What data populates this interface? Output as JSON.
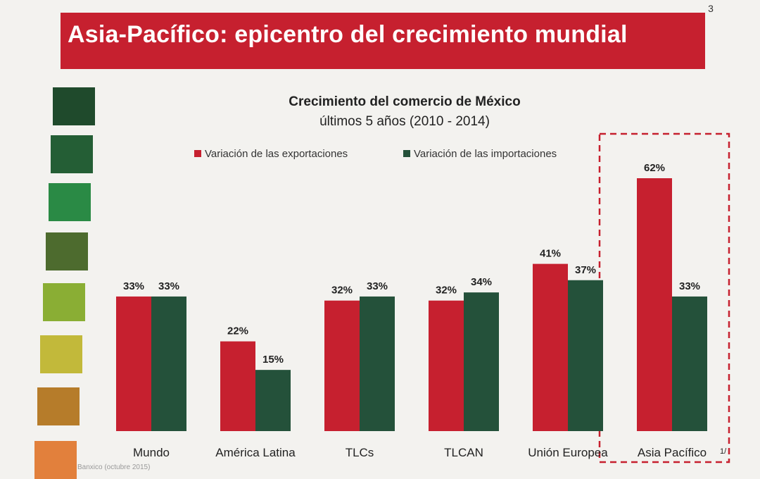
{
  "page_number": "3",
  "banner_title": "Asia-Pacífico: epicentro del crecimiento mundial",
  "palette_colors": [
    "#1f4a2c",
    "#245e35",
    "#2a8a45",
    "#4d6b2e",
    "#8aae34",
    "#c2b93a",
    "#b67c2a",
    "#e2803c"
  ],
  "footnote": "Banxico (octubre 2015)",
  "chart_data": {
    "type": "bar",
    "title": "Crecimiento del comercio de México",
    "subtitle": "últimos 5 años (2010 - 2014)",
    "categories": [
      "Mundo",
      "América Latina",
      "TLCs",
      "TLCAN",
      "Unión Europea",
      "Asia Pacífico"
    ],
    "category_notes": [
      "",
      "",
      "",
      "",
      "",
      "1/"
    ],
    "series": [
      {
        "name": "Variación de las exportaciones",
        "color": "#c6202f",
        "values": [
          33,
          22,
          32,
          32,
          41,
          62
        ],
        "labels": [
          "33%",
          "22%",
          "32%",
          "32%",
          "41%",
          "62%"
        ]
      },
      {
        "name": "Variación de las importaciones",
        "color": "#24513a",
        "values": [
          33,
          15,
          33,
          34,
          37,
          33
        ],
        "labels": [
          "33%",
          "15%",
          "33%",
          "34%",
          "37%",
          "33%"
        ]
      }
    ],
    "ylim": [
      0,
      62
    ],
    "grid": false,
    "legend_position": "top",
    "highlight_category": "Asia Pacífico",
    "highlight_color": "#c6202f"
  }
}
